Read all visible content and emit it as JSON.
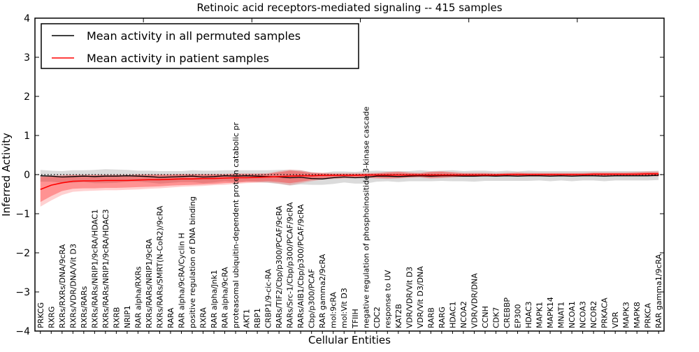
{
  "title": "Retinoic acid receptors-mediated signaling -- 415 samples",
  "axes": {
    "xlabel": "Cellular Entities",
    "ylabel": "Inferred Activity",
    "yticks": [
      "4",
      "3",
      "2",
      "1",
      "0",
      "−1",
      "−2",
      "−3",
      "−4"
    ]
  },
  "legend": [
    {
      "label": "Mean activity in all permuted samples",
      "color": "#000000"
    },
    {
      "label": "Mean activity in patient samples",
      "color": "#ff0000"
    }
  ],
  "colors": {
    "permuted_line": "#000000",
    "patient_line": "#ff0000",
    "permuted_band": "#999999",
    "patient_band": "#ff0000",
    "zero_line": "#000000"
  },
  "chart_data": {
    "type": "line",
    "title": "Retinoic acid receptors-mediated signaling -- 415 samples",
    "xlabel": "Cellular Entities",
    "ylabel": "Inferred Activity",
    "ylim": [
      -4,
      4
    ],
    "grid": false,
    "legend_position": "upper left",
    "zero_line": true,
    "categories": [
      "PRKCG",
      "RXRG",
      "RXRs/RXRs/DNA/9cRA",
      "RXRs/VDR/DNA/Vit D3",
      "RXRs/RARs",
      "RXRs/RARs/NRIP1/9cRA/HDAC1",
      "RXRs/RARs/NRIP1/9cRA/HDAC3",
      "RXRB",
      "NRIP1",
      "RAR alpha/RXRs",
      "RXRs/RARs/NRIP1/9cRA",
      "RXRs/RARs/SMRT(N-CoR2)/9cRA",
      "RARA",
      "RAR alpha/9cRA/Cyclin H",
      "positive regulation of DNA binding",
      "RXRA",
      "RAR alpha/Jnk1",
      "RAR alpha/9cRA",
      "proteasomal ubiquitin-dependent protein catabolic pr",
      "AKT1",
      "RBP1",
      "CRBP1/9-cic-RA",
      "RARs/TIF2/Cbp/p300/PCAF/9cRA",
      "RARs/Src-1/Cbp/p300/PCAF/9cRA",
      "RARs/AIB1/Cbp/p300/PCAF/9cRA",
      "Cbp/p300/PCAF",
      "RAR gamma2/9cRA",
      "mol:9cRA",
      "mol:Vit D3",
      "TFIIH",
      "negative regulation of phosphoinositide 3-kinase cascade",
      "CDC2",
      "response to UV",
      "KAT2B",
      "VDR/VDR/Vit D3",
      "VDR/Vit D3/DNA",
      "RARB",
      "RARG",
      "HDAC1",
      "NCOA2",
      "VDR/VDR/DNA",
      "CCNH",
      "CDK7",
      "CREBBP",
      "EP300",
      "HDAC3",
      "MAPK1",
      "MAPK14",
      "MNAT1",
      "NCOA1",
      "NCOA3",
      "NCOR2",
      "PRKACA",
      "VDR",
      "MAPK3",
      "MAPK8",
      "PRKCA",
      "RAR gamma1/9cRA"
    ],
    "series": [
      {
        "name": "Mean activity in all permuted samples",
        "color": "#000000",
        "values": [
          -0.03,
          -0.04,
          -0.06,
          -0.05,
          -0.04,
          -0.05,
          -0.04,
          -0.04,
          -0.03,
          -0.04,
          -0.05,
          -0.07,
          -0.06,
          -0.05,
          -0.04,
          -0.06,
          -0.05,
          -0.03,
          -0.04,
          -0.03,
          -0.04,
          -0.05,
          -0.06,
          -0.08,
          -0.07,
          -0.1,
          -0.11,
          -0.08,
          -0.06,
          -0.08,
          -0.07,
          -0.04,
          -0.04,
          -0.05,
          -0.04,
          -0.03,
          -0.04,
          -0.03,
          -0.03,
          -0.04,
          -0.04,
          -0.03,
          -0.04,
          -0.03,
          -0.04,
          -0.03,
          -0.03,
          -0.04,
          -0.03,
          -0.04,
          -0.03,
          -0.03,
          -0.04,
          -0.03,
          -0.03,
          -0.03,
          -0.03,
          -0.02
        ],
        "std": [
          0.15,
          0.14,
          0.15,
          0.16,
          0.15,
          0.17,
          0.18,
          0.17,
          0.15,
          0.14,
          0.15,
          0.16,
          0.15,
          0.14,
          0.15,
          0.16,
          0.15,
          0.14,
          0.15,
          0.14,
          0.15,
          0.16,
          0.18,
          0.2,
          0.18,
          0.16,
          0.15,
          0.16,
          0.14,
          0.15,
          0.16,
          0.14,
          0.13,
          0.14,
          0.13,
          0.14,
          0.13,
          0.13,
          0.14,
          0.13,
          0.14,
          0.13,
          0.12,
          0.13,
          0.12,
          0.13,
          0.12,
          0.13,
          0.12,
          0.13,
          0.12,
          0.12,
          0.13,
          0.12,
          0.12,
          0.12,
          0.12,
          0.12
        ]
      },
      {
        "name": "Mean activity in patient samples",
        "color": "#ff0000",
        "values": [
          -0.38,
          -0.27,
          -0.21,
          -0.17,
          -0.16,
          -0.16,
          -0.15,
          -0.15,
          -0.15,
          -0.14,
          -0.13,
          -0.13,
          -0.12,
          -0.11,
          -0.11,
          -0.1,
          -0.1,
          -0.09,
          -0.08,
          -0.08,
          -0.07,
          -0.06,
          -0.05,
          -0.04,
          -0.03,
          -0.03,
          -0.02,
          -0.02,
          -0.02,
          -0.02,
          -0.01,
          -0.01,
          -0.01,
          -0.01,
          -0.01,
          -0.01,
          -0.01,
          -0.01,
          -0.01,
          -0.01,
          -0.01,
          -0.01,
          -0.01,
          0.0,
          0.0,
          0.0,
          0.0,
          0.0,
          0.0,
          0.0,
          0.0,
          0.01,
          0.01,
          0.01,
          0.01,
          0.01,
          0.02,
          0.02
        ],
        "band_inner_lower": [
          -0.7,
          -0.55,
          -0.42,
          -0.36,
          -0.35,
          -0.35,
          -0.34,
          -0.34,
          -0.33,
          -0.32,
          -0.31,
          -0.3,
          -0.28,
          -0.27,
          -0.26,
          -0.25,
          -0.24,
          -0.22,
          -0.21,
          -0.19,
          -0.18,
          -0.17,
          -0.19,
          -0.22,
          -0.18,
          -0.14,
          -0.11,
          -0.09,
          -0.08,
          -0.07,
          -0.07,
          -0.08,
          -0.09,
          -0.08,
          -0.07,
          -0.06,
          -0.08,
          -0.07,
          -0.06,
          -0.05,
          -0.05,
          -0.04,
          -0.04,
          -0.04,
          -0.04,
          -0.04,
          -0.04,
          -0.04,
          -0.04,
          -0.04,
          -0.03,
          -0.03,
          -0.03,
          -0.03,
          -0.03,
          -0.03,
          -0.03,
          -0.04
        ],
        "band_inner_upper": [
          -0.06,
          -0.05,
          -0.03,
          -0.02,
          -0.02,
          -0.02,
          -0.02,
          -0.02,
          -0.02,
          -0.01,
          -0.01,
          -0.01,
          -0.01,
          0.0,
          0.0,
          0.0,
          0.0,
          0.0,
          0.01,
          0.01,
          0.01,
          0.02,
          0.06,
          0.1,
          0.08,
          0.04,
          0.03,
          0.02,
          0.02,
          0.02,
          0.02,
          0.03,
          0.05,
          0.06,
          0.04,
          0.03,
          0.06,
          0.07,
          0.05,
          0.03,
          0.03,
          0.03,
          0.02,
          0.03,
          0.04,
          0.03,
          0.03,
          0.03,
          0.03,
          0.03,
          0.03,
          0.04,
          0.04,
          0.04,
          0.04,
          0.05,
          0.06,
          0.06
        ],
        "band_outer_lower": [
          -0.82,
          -0.66,
          -0.52,
          -0.44,
          -0.42,
          -0.41,
          -0.4,
          -0.4,
          -0.39,
          -0.38,
          -0.36,
          -0.35,
          -0.33,
          -0.31,
          -0.3,
          -0.29,
          -0.27,
          -0.26,
          -0.24,
          -0.22,
          -0.21,
          -0.2,
          -0.23,
          -0.27,
          -0.22,
          -0.17,
          -0.13,
          -0.11,
          -0.1,
          -0.09,
          -0.09,
          -0.1,
          -0.11,
          -0.1,
          -0.08,
          -0.07,
          -0.1,
          -0.09,
          -0.07,
          -0.06,
          -0.06,
          -0.05,
          -0.05,
          -0.05,
          -0.05,
          -0.05,
          -0.05,
          -0.05,
          -0.05,
          -0.05,
          -0.04,
          -0.04,
          -0.04,
          -0.04,
          -0.04,
          -0.04,
          -0.04,
          -0.05
        ],
        "band_outer_upper": [
          -0.03,
          -0.02,
          -0.01,
          0.0,
          0.0,
          0.0,
          0.0,
          0.0,
          0.0,
          0.01,
          0.01,
          0.01,
          0.01,
          0.02,
          0.02,
          0.02,
          0.02,
          0.02,
          0.03,
          0.03,
          0.03,
          0.04,
          0.09,
          0.13,
          0.11,
          0.06,
          0.05,
          0.04,
          0.04,
          0.04,
          0.04,
          0.05,
          0.07,
          0.08,
          0.06,
          0.05,
          0.08,
          0.09,
          0.07,
          0.05,
          0.05,
          0.05,
          0.04,
          0.05,
          0.06,
          0.05,
          0.05,
          0.05,
          0.05,
          0.05,
          0.05,
          0.06,
          0.06,
          0.06,
          0.06,
          0.07,
          0.08,
          0.08
        ]
      }
    ]
  }
}
